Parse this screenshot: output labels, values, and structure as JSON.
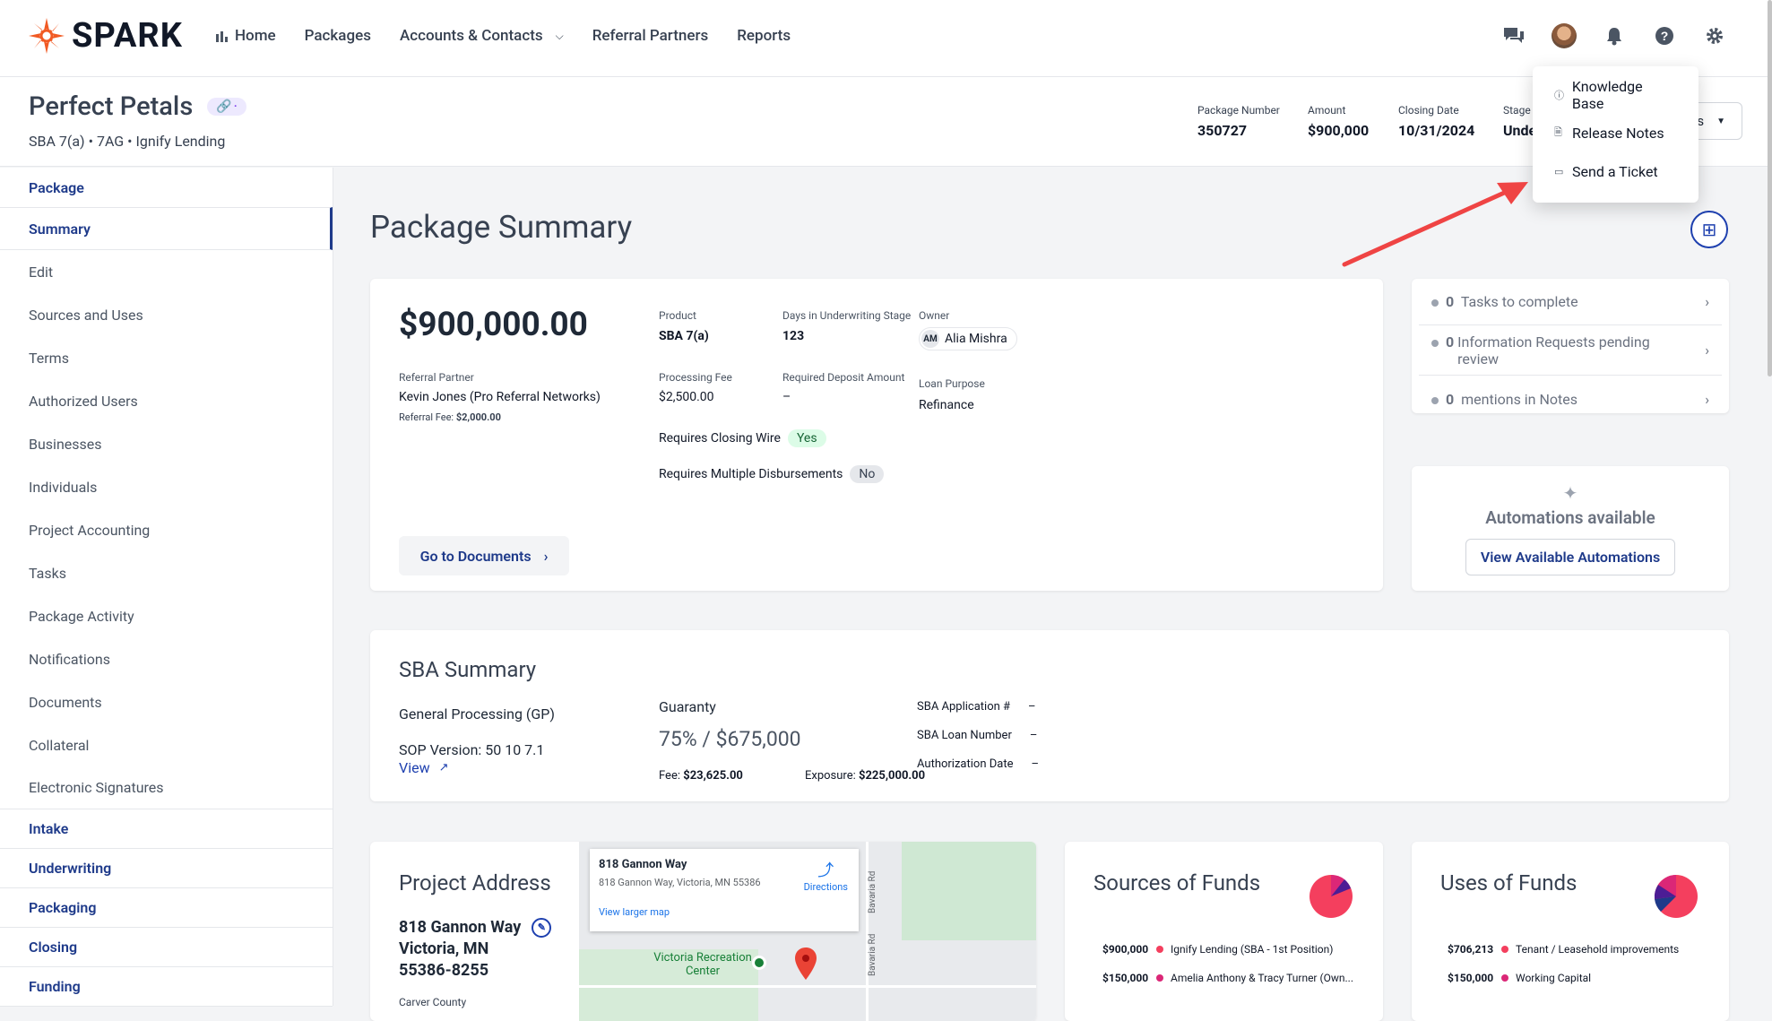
{
  "brand": {
    "name": "SPARK",
    "accent": "#f15a24"
  },
  "nav": {
    "home": "Home",
    "packages": "Packages",
    "accounts": "Accounts & Contacts",
    "referral": "Referral Partners",
    "reports": "Reports"
  },
  "header": {
    "title": "Perfect Petals",
    "subtitle": "SBA 7(a) • 7AG • Ignify Lending",
    "package_number_label": "Package Number",
    "package_number": "350727",
    "amount_label": "Amount",
    "amount": "$900,000",
    "closing_label": "Closing Date",
    "closing": "10/31/2024",
    "stage_label": "Stage",
    "stage": "Unde",
    "stage_btn": "s"
  },
  "help_menu": {
    "items": [
      "Knowledge Base",
      "Release Notes",
      "Send a Ticket"
    ]
  },
  "sidebar": {
    "package": "Package",
    "items": [
      "Summary",
      "Edit",
      "Sources and Uses",
      "Terms",
      "Authorized Users",
      "Businesses",
      "Individuals",
      "Project Accounting",
      "Tasks",
      "Package Activity",
      "Notifications",
      "Documents",
      "Collateral",
      "Electronic Signatures"
    ],
    "sections": [
      "Intake",
      "Underwriting",
      "Packaging",
      "Closing",
      "Funding"
    ]
  },
  "page": {
    "title": "Package Summary"
  },
  "summary": {
    "amount": "$900,000.00",
    "referral_label": "Referral Partner",
    "referral": "Kevin Jones (Pro Referral Networks)",
    "referral_fee_label": "Referral Fee:",
    "referral_fee": "$2,000.00",
    "product_label": "Product",
    "product": "SBA 7(a)",
    "days_label": "Days in Underwriting Stage",
    "days": "123",
    "owner_label": "Owner",
    "owner_initials": "AM",
    "owner": "Alia Mishra",
    "fee_label": "Processing Fee",
    "fee": "$2,500.00",
    "deposit_label": "Required Deposit Amount",
    "deposit": "–",
    "purpose_label": "Loan Purpose",
    "purpose": "Refinance",
    "closing_wire_label": "Requires Closing Wire",
    "closing_wire": "Yes",
    "multi_disb_label": "Requires Multiple Disbursements",
    "multi_disb": "No",
    "docs_btn": "Go to Documents"
  },
  "tasks": {
    "rows": [
      {
        "count": "0",
        "text": "Tasks to complete"
      },
      {
        "count": "0",
        "text": "Information Requests pending review"
      },
      {
        "count": "0",
        "text": "mentions in Notes"
      }
    ]
  },
  "automations": {
    "title": "Automations available",
    "button": "View Available Automations"
  },
  "sba": {
    "title": "SBA Summary",
    "processing": "General Processing (GP)",
    "sop": "SOP Version: 50 10 7.1",
    "view": "View",
    "guaranty_label": "Guaranty",
    "guaranty": "75% / $675,000",
    "fee_label": "Fee:",
    "fee": "$23,625.00",
    "exposure_label": "Exposure:",
    "exposure": "$225,000.00",
    "app_label": "SBA Application #",
    "app": "–",
    "loan_label": "SBA Loan Number",
    "loan": "–",
    "auth_label": "Authorization Date",
    "auth": "–"
  },
  "address": {
    "title": "Project Address",
    "line1": "818 Gannon Way",
    "line2": "Victoria, MN",
    "line3": "55386-8255",
    "county": "Carver County"
  },
  "map": {
    "name": "818 Gannon Way",
    "addr": "818 Gannon Way, Victoria, MN 55386",
    "directions": "Directions",
    "larger": "View larger map",
    "poi": "Victoria Recreation Center",
    "road": "Bavaria Rd",
    "road2": "Bavaria Rd"
  },
  "sources": {
    "title": "Sources of Funds",
    "rows": [
      {
        "amount": "$900,000",
        "label": "Ignify Lending (SBA - 1st Position)",
        "color": "#f43f5e"
      },
      {
        "amount": "$150,000",
        "label": "Amelia Anthony & Tracy Turner (Own...",
        "color": "#db2777"
      }
    ]
  },
  "uses": {
    "title": "Uses of Funds",
    "rows": [
      {
        "amount": "$706,213",
        "label": "Tenant / Leasehold improvements",
        "color": "#f43f5e"
      },
      {
        "amount": "$150,000",
        "label": "Working Capital",
        "color": "#db2777"
      }
    ]
  }
}
